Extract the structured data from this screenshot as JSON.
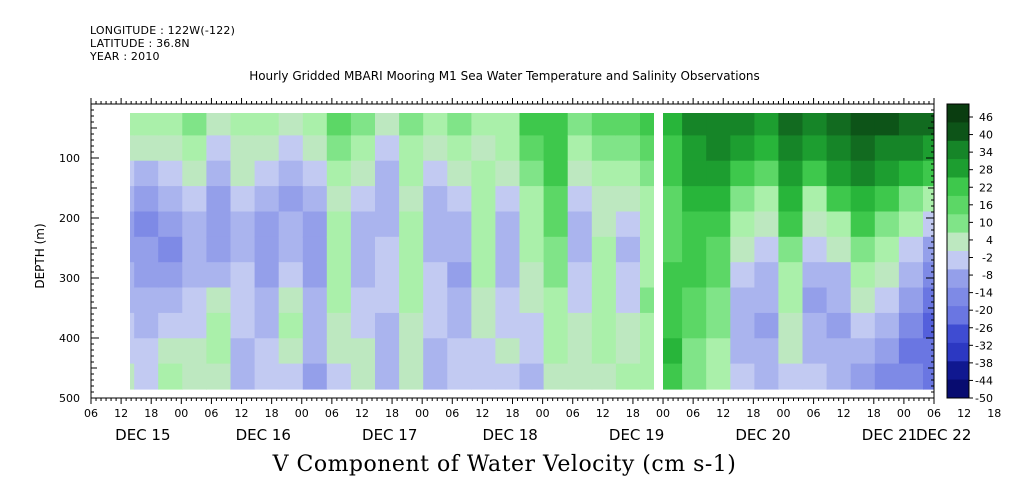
{
  "header": {
    "longitude": "LONGITUDE : 122W(-122)",
    "latitude": "LATITUDE : 36.8N",
    "year": "YEAR : 2010"
  },
  "chart_data": {
    "type": "heatmap",
    "title": "Hourly Gridded MBARI Mooring M1 Sea Water Temperature and Salinity Observations",
    "xlabel": "V Component of Water Velocity (cm s-1)",
    "ylabel": "DEPTH (m)",
    "ylim": [
      500,
      10
    ],
    "yticks": [
      100,
      200,
      300,
      400,
      500
    ],
    "x_hour_ticks": [
      "06",
      "12",
      "18",
      "00",
      "06",
      "12",
      "18",
      "00",
      "06",
      "12",
      "18",
      "00",
      "06",
      "12",
      "18",
      "00",
      "06",
      "12",
      "18",
      "00",
      "06",
      "12",
      "18",
      "00",
      "06",
      "12",
      "18",
      "00",
      "06",
      "12",
      "18",
      "00"
    ],
    "x_day_labels": [
      "DEC 15",
      "DEC 16",
      "DEC 17",
      "DEC 18",
      "DEC 19",
      "DEC 20",
      "DEC 21",
      "DEC 22"
    ],
    "colorbar": {
      "min": -50,
      "max": 50,
      "tick_labels": [
        "46",
        "40",
        "34",
        "28",
        "22",
        "16",
        "10",
        "4",
        "-2",
        "-8",
        "-14",
        "-20",
        "-26",
        "-32",
        "-38",
        "-44",
        "-50"
      ],
      "colors_pos": [
        "#0a3d10",
        "#0d5418",
        "#126b20",
        "#168528",
        "#1d9e30",
        "#28b53a",
        "#3ec84c",
        "#5cd766",
        "#80e488",
        "#aaf0aa"
      ],
      "colors_neg": [
        "#c2caf2",
        "#aab4ee",
        "#949fea",
        "#7e8ae6",
        "#6a76e2",
        "#5460dc",
        "#3f4cd2",
        "#2c38c2",
        "#1c26a8",
        "#101890",
        "#080c70"
      ]
    },
    "time_range_days": [
      "DEC 15 06:00",
      "DEC 22 06:00"
    ],
    "data_start": "DEC 15 11:00",
    "series_note": "",
    "columns": [
      {
        "t": 0.0,
        "v": [
          8,
          2,
          -6,
          -10,
          -12,
          -12,
          -10,
          -8,
          -6,
          -4,
          2
        ]
      },
      {
        "t": 0.15,
        "v": [
          6,
          0,
          -8,
          -14,
          -16,
          -14,
          -12,
          -10,
          -8,
          -6,
          -4
        ]
      },
      {
        "t": 0.35,
        "v": [
          4,
          -2,
          -6,
          -10,
          -14,
          -16,
          -12,
          -8,
          -6,
          2,
          6
        ]
      },
      {
        "t": 0.55,
        "v": [
          10,
          6,
          2,
          -4,
          -8,
          -10,
          -8,
          -6,
          -4,
          -2,
          0
        ]
      },
      {
        "t": 0.75,
        "v": [
          2,
          -4,
          -8,
          -12,
          -14,
          -12,
          -10,
          2,
          6,
          4,
          -2
        ]
      },
      {
        "t": 0.95,
        "v": [
          6,
          2,
          -2,
          -6,
          -10,
          -8,
          -6,
          -4,
          -6,
          -8,
          -10
        ]
      },
      {
        "t": 1.15,
        "v": [
          4,
          0,
          -6,
          -10,
          -12,
          -14,
          -12,
          -10,
          -8,
          -6,
          -4
        ]
      },
      {
        "t": 1.35,
        "v": [
          -2,
          -6,
          -10,
          -12,
          -10,
          -8,
          -6,
          2,
          4,
          0,
          -4
        ]
      },
      {
        "t": 1.55,
        "v": [
          4,
          2,
          -4,
          -8,
          -12,
          -14,
          -12,
          -10,
          -8,
          -10,
          -12
        ]
      },
      {
        "t": 1.75,
        "v": [
          14,
          10,
          6,
          2,
          4,
          6,
          8,
          4,
          2,
          -2,
          -4
        ]
      },
      {
        "t": 1.95,
        "v": [
          10,
          4,
          -2,
          -6,
          -8,
          -10,
          -8,
          -6,
          -4,
          -2,
          0
        ]
      },
      {
        "t": 2.15,
        "v": [
          2,
          -4,
          -8,
          -10,
          -8,
          -6,
          -4,
          -6,
          -8,
          -10,
          -8
        ]
      },
      {
        "t": 2.35,
        "v": [
          12,
          8,
          4,
          2,
          6,
          8,
          6,
          4,
          2,
          0,
          -2
        ]
      },
      {
        "t": 2.55,
        "v": [
          4,
          0,
          -4,
          -8,
          -10,
          -8,
          -6,
          -4,
          -6,
          -8,
          -10
        ]
      },
      {
        "t": 2.75,
        "v": [
          10,
          6,
          -2,
          -6,
          -8,
          -10,
          -12,
          -10,
          -8,
          -6,
          -4
        ]
      },
      {
        "t": 2.95,
        "v": [
          6,
          2,
          4,
          6,
          8,
          6,
          4,
          2,
          -2,
          -4,
          -6
        ]
      },
      {
        "t": 3.15,
        "v": [
          8,
          4,
          -2,
          -6,
          -8,
          -10,
          -8,
          -6,
          -4,
          -2,
          -4
        ]
      },
      {
        "t": 3.35,
        "v": [
          18,
          16,
          12,
          8,
          6,
          4,
          2,
          -2,
          -4,
          -6,
          -8
        ]
      },
      {
        "t": 3.55,
        "v": [
          22,
          20,
          18,
          16,
          14,
          12,
          10,
          8,
          6,
          4,
          2
        ]
      },
      {
        "t": 3.75,
        "v": [
          12,
          8,
          2,
          -4,
          -8,
          -10,
          -6,
          -4,
          -2,
          0,
          2
        ]
      },
      {
        "t": 3.95,
        "v": [
          16,
          10,
          6,
          2,
          -2,
          4,
          6,
          8,
          6,
          4,
          2
        ]
      },
      {
        "t": 4.15,
        "v": [
          14,
          10,
          4,
          -2,
          -6,
          -8,
          -6,
          -4,
          -2,
          2,
          4
        ]
      },
      {
        "t": 4.35,
        "v": [
          20,
          16,
          10,
          6,
          4,
          6,
          8,
          10,
          8,
          6,
          4
        ]
      },
      {
        "t": 4.5,
        "v": [
          26,
          22,
          18,
          16,
          14,
          16,
          18,
          20,
          22,
          24,
          22
        ]
      },
      {
        "t": 4.7,
        "v": [
          34,
          30,
          28,
          24,
          22,
          20,
          18,
          16,
          14,
          12,
          10
        ]
      },
      {
        "t": 4.9,
        "v": [
          36,
          32,
          28,
          24,
          20,
          16,
          14,
          12,
          10,
          8,
          6
        ]
      },
      {
        "t": 5.1,
        "v": [
          34,
          28,
          20,
          10,
          4,
          -2,
          -6,
          -8,
          -10,
          -8,
          -6
        ]
      },
      {
        "t": 5.3,
        "v": [
          30,
          24,
          16,
          8,
          2,
          -4,
          -8,
          -10,
          -12,
          -10,
          -8
        ]
      },
      {
        "t": 5.5,
        "v": [
          38,
          34,
          30,
          24,
          18,
          12,
          8,
          4,
          2,
          -2,
          -6
        ]
      },
      {
        "t": 5.7,
        "v": [
          34,
          28,
          18,
          8,
          0,
          -6,
          -10,
          -12,
          -10,
          -8,
          -6
        ]
      },
      {
        "t": 5.9,
        "v": [
          40,
          36,
          28,
          18,
          8,
          -2,
          -8,
          -10,
          -12,
          -10,
          -8
        ]
      },
      {
        "t": 6.1,
        "v": [
          44,
          40,
          34,
          26,
          18,
          10,
          4,
          -2,
          -6,
          -10,
          -12
        ]
      },
      {
        "t": 6.3,
        "v": [
          42,
          36,
          28,
          18,
          10,
          4,
          -2,
          -6,
          -10,
          -14,
          -16
        ]
      },
      {
        "t": 6.5,
        "v": [
          40,
          34,
          24,
          12,
          4,
          -4,
          -10,
          -14,
          -18,
          -20,
          -18
        ]
      },
      {
        "t": 6.7,
        "v": [
          38,
          30,
          18,
          6,
          -4,
          -12,
          -18,
          -22,
          -24,
          -22,
          -20
        ]
      },
      {
        "t": 6.85,
        "v": [
          36,
          28,
          14,
          2,
          -6,
          -14,
          -20,
          -24,
          -26,
          -24,
          -22
        ]
      }
    ]
  }
}
